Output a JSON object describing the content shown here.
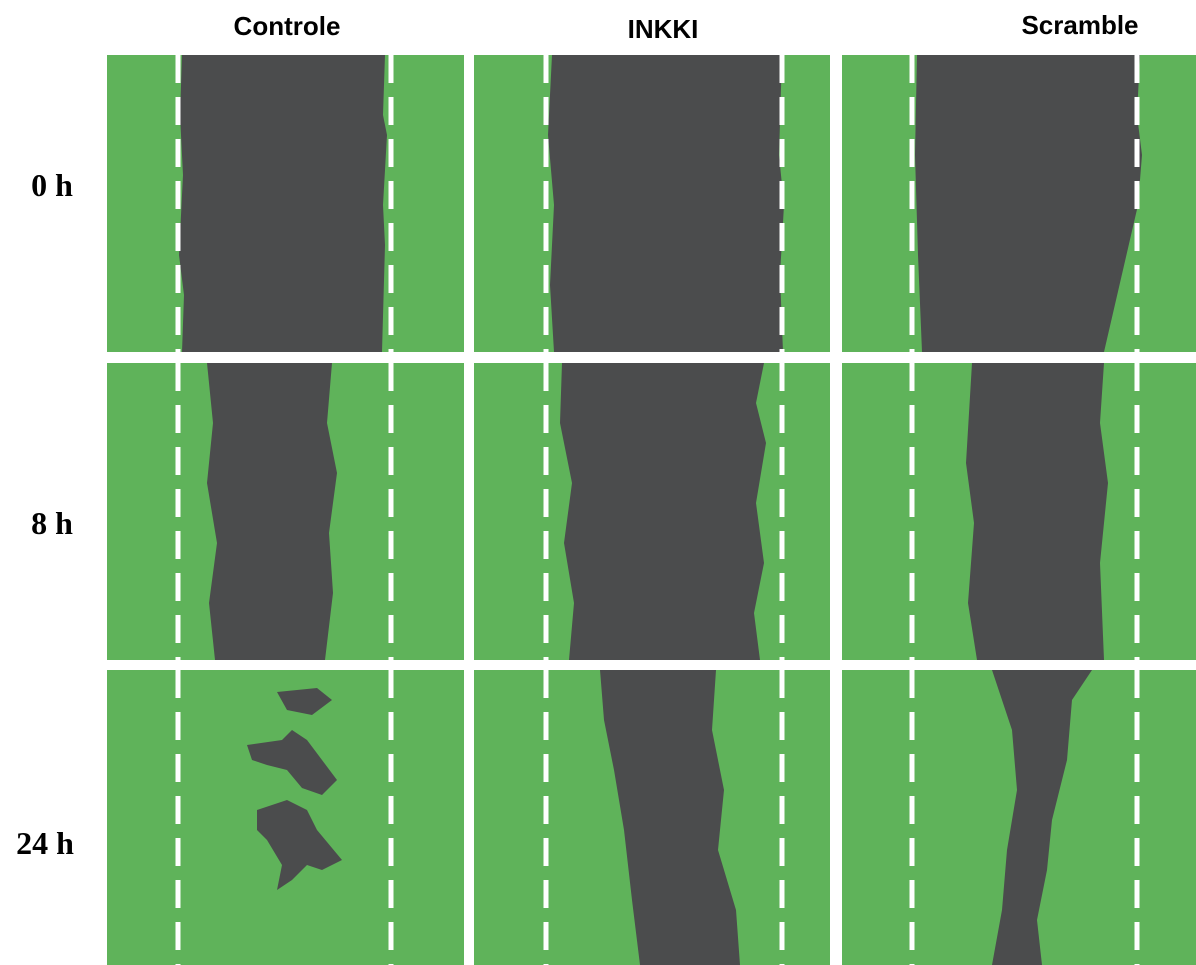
{
  "columns": [
    "Controle",
    "INKKI",
    "Scramble"
  ],
  "rows": [
    "0 h",
    "8 h",
    "24 h"
  ]
}
